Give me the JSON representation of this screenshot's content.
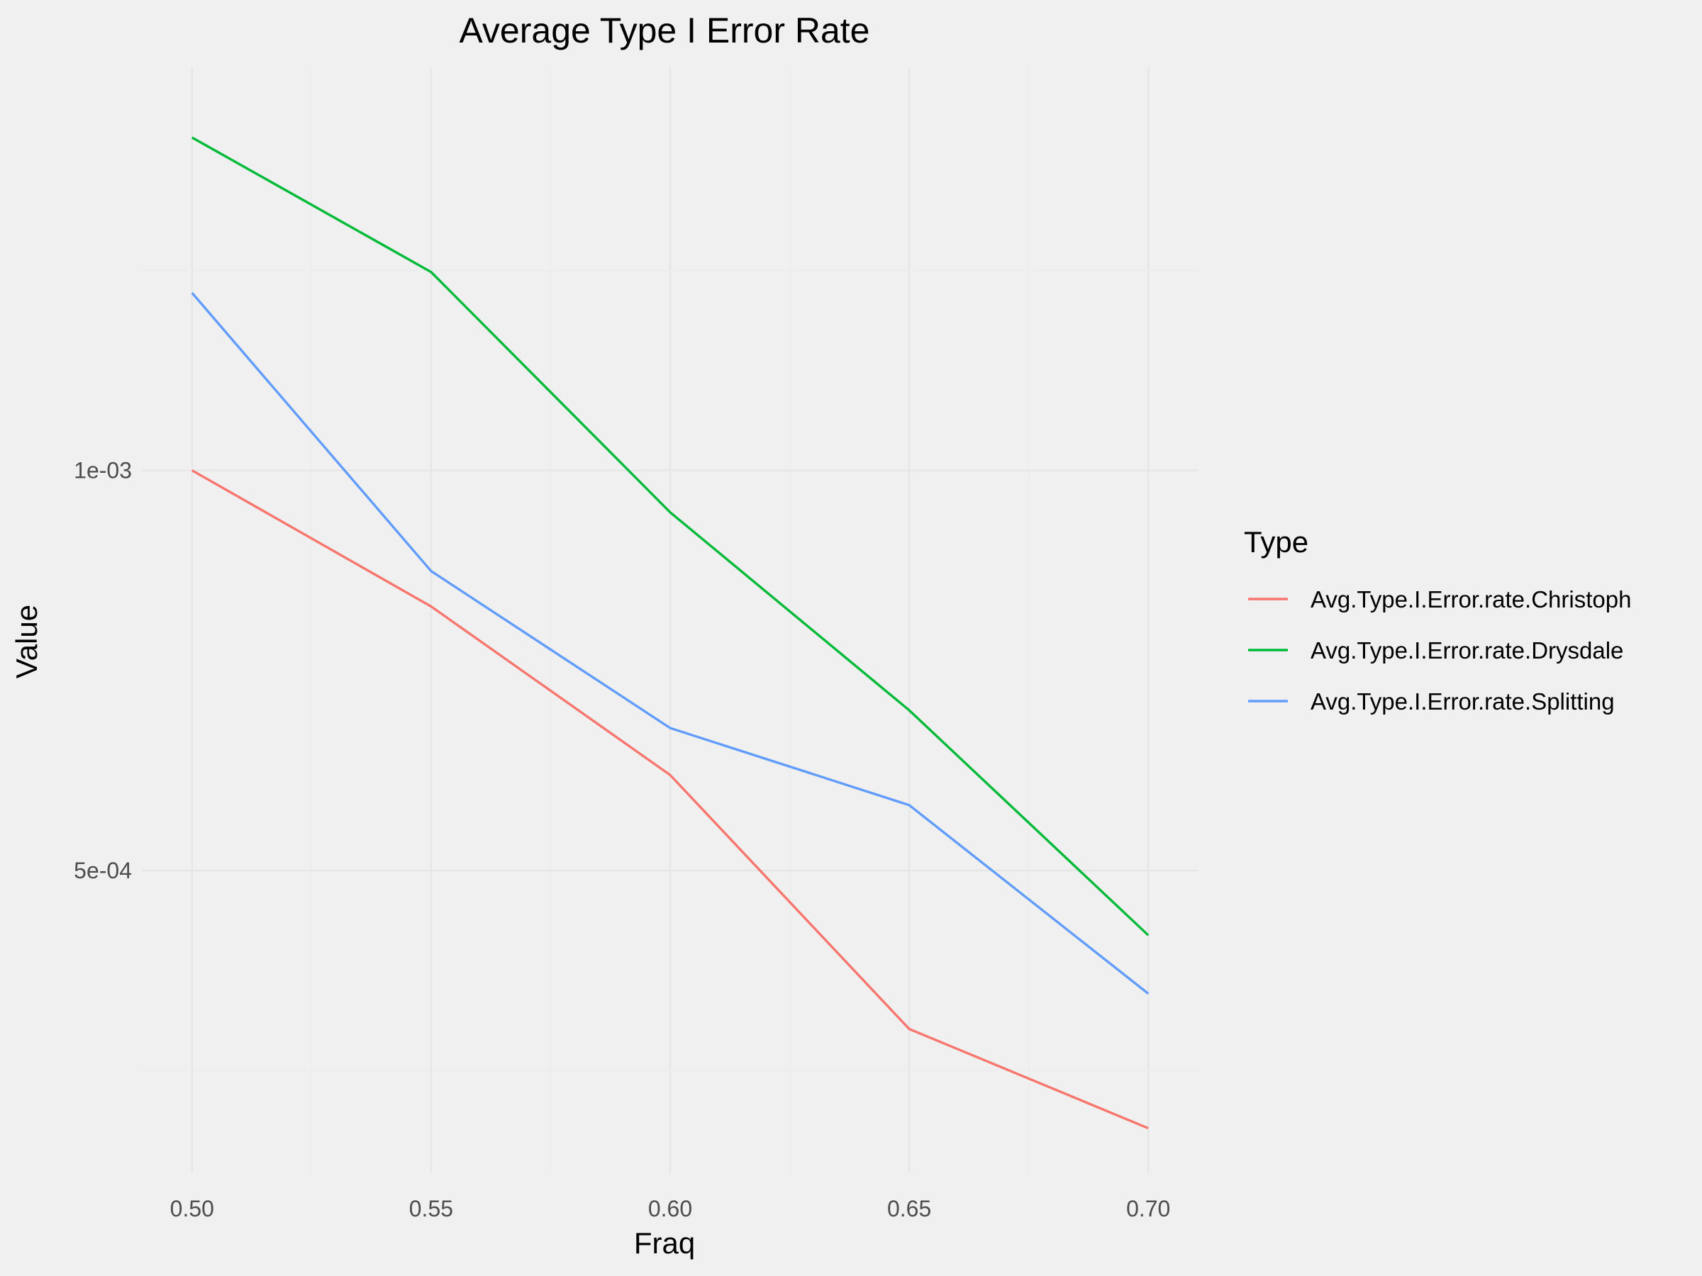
{
  "chart_data": {
    "type": "line",
    "title": "Average Type I Error Rate",
    "xlabel": "Fraq",
    "ylabel": "Value",
    "y_scale": "log",
    "x": [
      0.5,
      0.55,
      0.6,
      0.65,
      0.7
    ],
    "x_ticks": [
      "0.50",
      "0.55",
      "0.60",
      "0.65",
      "0.70"
    ],
    "y_ticks": [
      {
        "value": 0.001,
        "label": "1e-03"
      },
      {
        "value": 0.0005,
        "label": "5e-04"
      }
    ],
    "xlim": [
      0.4895,
      0.7105
    ],
    "ylim": [
      0.000296,
      0.00201
    ],
    "grid": true,
    "legend": {
      "title": "Type",
      "position": "right"
    },
    "series": [
      {
        "name": "Avg.Type.I.Error.rate.Christoph",
        "color": "#F8766D",
        "values": [
          0.001,
          0.00079,
          0.00059,
          0.00038,
          0.00032
        ]
      },
      {
        "name": "Avg.Type.I.Error.rate.Drysdale",
        "color": "#00BA38",
        "values": [
          0.00178,
          0.00141,
          0.00093,
          0.00066,
          0.000447
        ]
      },
      {
        "name": "Avg.Type.I.Error.rate.Splitting",
        "color": "#619CFF",
        "values": [
          0.00136,
          0.00084,
          0.00064,
          0.00056,
          0.000404
        ]
      }
    ]
  }
}
